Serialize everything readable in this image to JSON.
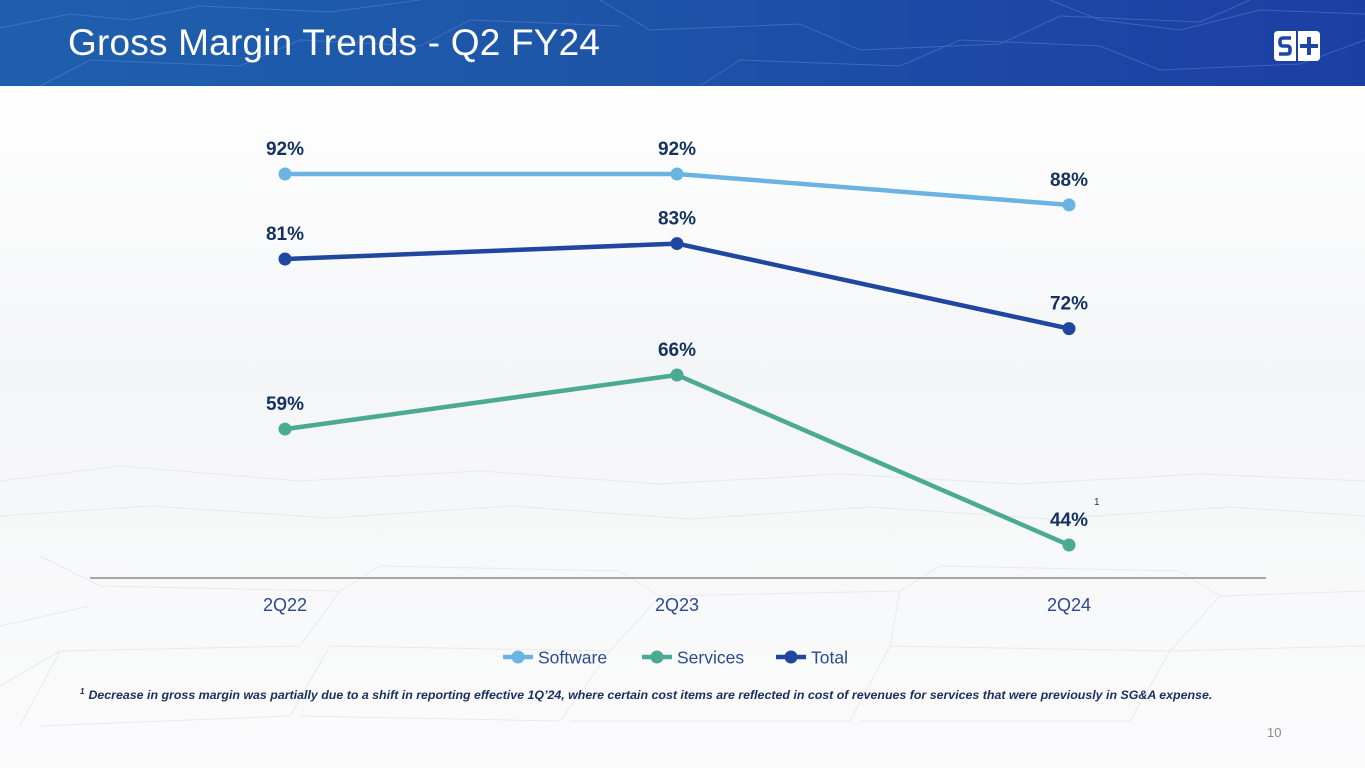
{
  "slide": {
    "title": "Gross Margin Trends - Q2 FY24",
    "logo_text": "S+",
    "page_number": "10",
    "footnote_marker": "1",
    "footnote_text": "Decrease in gross margin was partially due to a shift in reporting effective 1Q’24, where certain cost items are reflected in cost of revenues for services that were previously in SG&A expense."
  },
  "colors": {
    "header_blue": "#1e56a8",
    "label_navy": "#14325e",
    "axis_label_blue": "#2b4a8f"
  },
  "chart_data": {
    "type": "line",
    "title": "Gross Margin Trends - Q2 FY24",
    "xlabel": "",
    "ylabel": "",
    "categories": [
      "2Q22",
      "2Q23",
      "2Q24"
    ],
    "ylim": [
      40,
      95
    ],
    "grid": false,
    "legend_position": "bottom",
    "series": [
      {
        "name": "Software",
        "values": [
          92,
          92,
          88
        ],
        "labels": [
          "92%",
          "92%",
          "88%"
        ],
        "color": "#6ab4e3"
      },
      {
        "name": "Services",
        "values": [
          59,
          66,
          44
        ],
        "labels": [
          "59%",
          "66%",
          "44%"
        ],
        "color": "#4aaa92"
      },
      {
        "name": "Total",
        "values": [
          81,
          83,
          72
        ],
        "labels": [
          "81%",
          "83%",
          "72%"
        ],
        "color": "#1f47a0"
      }
    ],
    "annotations": [
      {
        "series": "Services",
        "category": "2Q24",
        "text": "1"
      }
    ]
  }
}
